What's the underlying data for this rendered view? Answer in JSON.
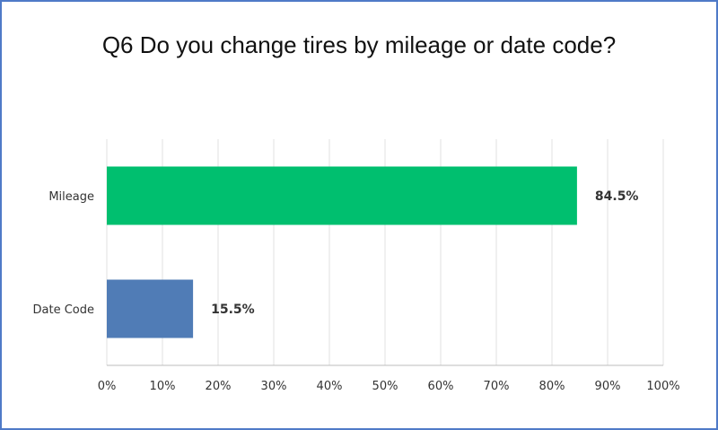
{
  "colors": {
    "frame": "#4f7ac7",
    "grid": "#e1e1e1",
    "axis": "#bdbdbd"
  },
  "chart_data": {
    "type": "bar",
    "orientation": "horizontal",
    "title": "Q6 Do you change tires by mileage or date code?",
    "categories": [
      "Mileage",
      "Date Code"
    ],
    "values": [
      84.5,
      15.5
    ],
    "value_labels": [
      "84.5%",
      "15.5%"
    ],
    "bar_colors": [
      "#00bf6f",
      "#507cb6"
    ],
    "xlim": [
      0,
      100
    ],
    "x_ticks": [
      "0%",
      "10%",
      "20%",
      "30%",
      "40%",
      "50%",
      "60%",
      "70%",
      "80%",
      "90%",
      "100%"
    ],
    "grid": true,
    "xlabel": "",
    "ylabel": ""
  }
}
